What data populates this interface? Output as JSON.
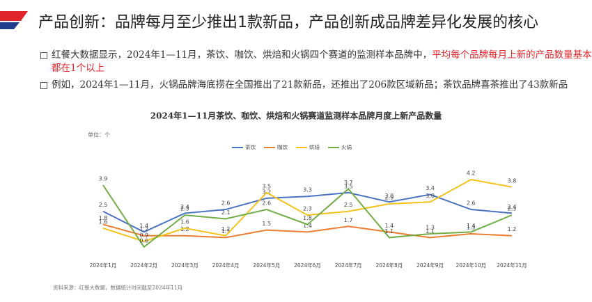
{
  "header": {
    "title": "产品创新：品牌每月至少推出1款新品，产品创新成品牌差异化发展的核心"
  },
  "bullets": [
    {
      "text": "红餐大数据显示，2024年1—11月，茶饮、咖饮、烘焙和火锅四个赛道的监测样本品牌中，",
      "highlight": "平均每个品牌每月上新的产品数量基本都在1个以上"
    },
    {
      "text": "例如，2024年1—11月，火锅品牌海底捞在全国推出了21款新品，还推出了206款区域新品；茶饮品牌喜茶推出了43款新品"
    }
  ],
  "chart_data": {
    "type": "line",
    "title": "2024年1—11月茶饮、咖饮、烘焙和火锅赛道监测样本品牌月度上新产品数量",
    "unit": "单位：个",
    "source": "资料来源：红餐大数据，数据统计时间截至2024年11月",
    "categories": [
      "2024年1月",
      "2024年2月",
      "2024年3月",
      "2024年4月",
      "2024年5月",
      "2024年6月",
      "2024年7月",
      "2024年8月",
      "2024年9月",
      "2024年10月",
      "2024年11月"
    ],
    "series": [
      {
        "name": "茶饮",
        "color": "#4a72c4",
        "values": [
          2.5,
          1.4,
          2.4,
          2.6,
          3.2,
          3.3,
          3.5,
          3.0,
          3.4,
          2.6,
          2.4
        ],
        "value_labels": [
          "2.5",
          "1.4",
          "2.4",
          "2.6",
          "3.2",
          "3.3",
          "3.5",
          "3.0",
          "3.4",
          "2.6",
          "2.4"
        ]
      },
      {
        "name": "咖饮",
        "color": "#ed7d31",
        "values": [
          1.8,
          1.2,
          1.2,
          1.1,
          1.5,
          1.4,
          1.7,
          1.4,
          1.1,
          1.3,
          1.2
        ],
        "value_labels": [
          "1.8",
          "1.2",
          "1.2",
          "1.1",
          "1.5",
          "1.4",
          "1.7",
          "1.4",
          "1.1",
          "1.3",
          "1.2"
        ]
      },
      {
        "name": "烘焙",
        "color": "#f2c21b",
        "values": [
          1.6,
          0.9,
          1.6,
          1.2,
          3.5,
          2.3,
          2.5,
          2.9,
          3.0,
          4.2,
          3.8
        ],
        "value_labels": [
          "1.6",
          "0.9",
          "1.6",
          "1.2",
          "3.5",
          "2.3",
          "2.5",
          "2.9",
          "3.0",
          "4.2",
          "3.8"
        ]
      },
      {
        "name": "火锅",
        "color": "#70ad47",
        "values": [
          3.9,
          0.6,
          2.3,
          2.1,
          2.6,
          1.8,
          3.7,
          1.1,
          1.3,
          1.4,
          2.3
        ],
        "value_labels": [
          "3.9",
          "0.6",
          "2.3",
          "2.1",
          "2.6",
          "1.8",
          "3.7",
          "1.1",
          "1.3",
          "1.4",
          "2.3"
        ]
      }
    ]
  }
}
